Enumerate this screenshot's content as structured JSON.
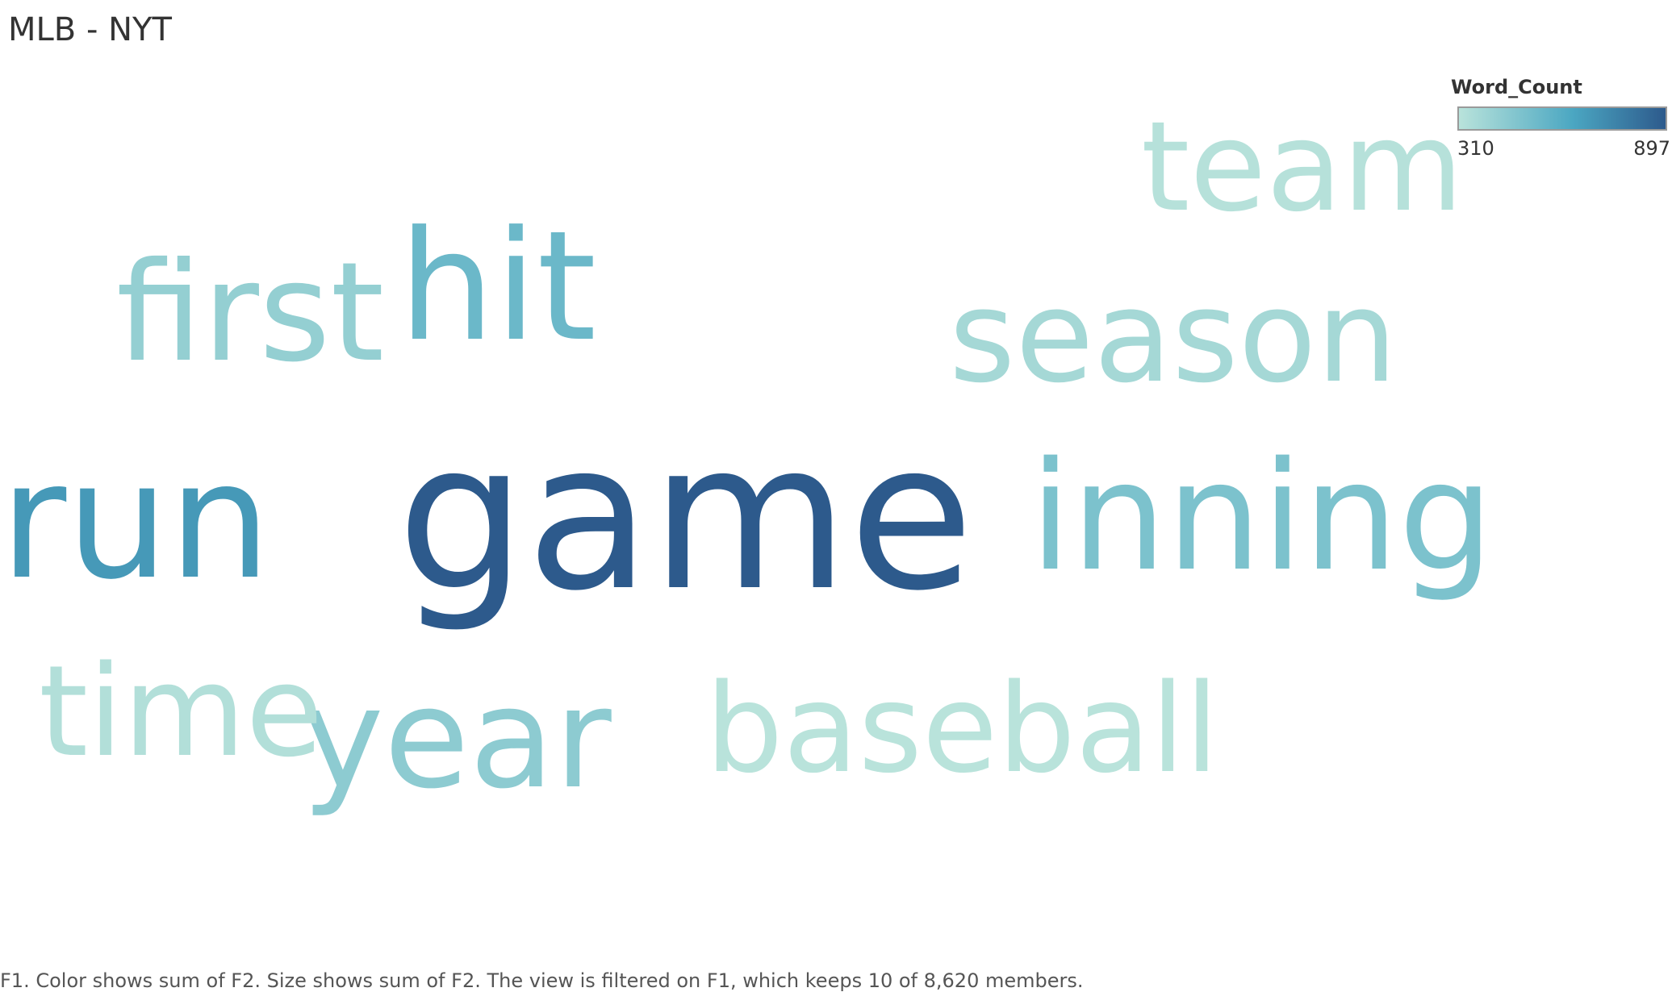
{
  "sheet": {
    "title": "MLB - NYT",
    "caption": "F1.  Color shows sum of F2.  Size shows sum of F2. The view is filtered on F1, which keeps 10 of 8,620 members."
  },
  "legend": {
    "title": "Word_Count",
    "min_label": "310",
    "max_label": "897",
    "color_low": "#b9e3db",
    "color_mid": "#4ba7c2",
    "color_high": "#2d5a8c"
  },
  "chart_data": {
    "type": "wordcloud",
    "measure": "Word_Count",
    "color_range": [
      310,
      897
    ],
    "words": [
      {
        "text": "game",
        "value": 897
      },
      {
        "text": "run",
        "value": 680
      },
      {
        "text": "hit",
        "value": 540
      },
      {
        "text": "inning",
        "value": 490
      },
      {
        "text": "year",
        "value": 440
      },
      {
        "text": "first",
        "value": 420
      },
      {
        "text": "season",
        "value": 370
      },
      {
        "text": "time",
        "value": 330
      },
      {
        "text": "team",
        "value": 320
      },
      {
        "text": "baseball",
        "value": 310
      }
    ]
  }
}
